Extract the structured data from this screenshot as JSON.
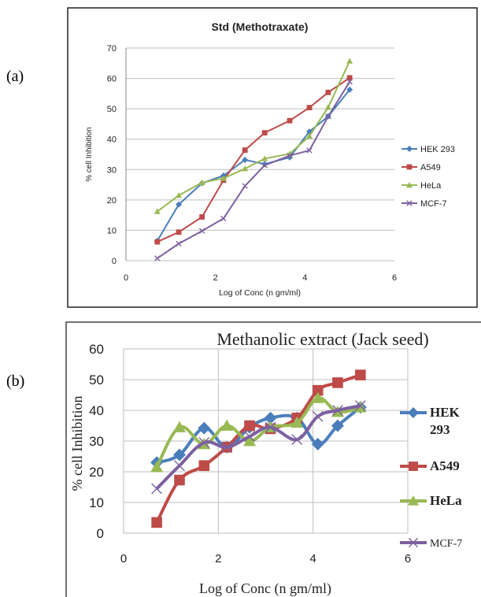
{
  "panel_labels": [
    "(a)",
    "(b)"
  ],
  "colors": {
    "HEK 293": "#4a7ebb",
    "A549": "#be4b48",
    "HeLa": "#98b954",
    "MCF-7": "#7d60a0"
  },
  "chart_data": [
    {
      "type": "line",
      "title": "Std (Methotraxate)",
      "xlabel": "Log of Conc (n gm/ml)",
      "ylabel": "% cell Inhibition",
      "xlim": [
        0,
        6
      ],
      "ylim": [
        0,
        70
      ],
      "xticks": [
        0,
        2,
        4,
        6
      ],
      "yticks": [
        0,
        10,
        20,
        30,
        40,
        50,
        60,
        70
      ],
      "legend_position": "right",
      "smooth": false,
      "series": [
        {
          "name": "HEK 293",
          "marker": "diamond",
          "x": [
            0.7,
            1.18,
            1.7,
            2.18,
            2.66,
            3.1,
            3.66,
            4.1,
            4.52,
            5.0
          ],
          "y": [
            6.5,
            18.5,
            25.5,
            28.0,
            33.2,
            31.8,
            34.0,
            42.5,
            47.5,
            56.3
          ]
        },
        {
          "name": "A549",
          "marker": "square",
          "x": [
            0.7,
            1.18,
            1.7,
            2.18,
            2.66,
            3.1,
            3.66,
            4.1,
            4.52,
            5.0
          ],
          "y": [
            6.2,
            9.4,
            14.4,
            26.5,
            36.4,
            42.1,
            46.1,
            50.4,
            55.4,
            60.2
          ]
        },
        {
          "name": "HeLa",
          "marker": "triangle",
          "x": [
            0.7,
            1.18,
            1.7,
            2.18,
            2.66,
            3.1,
            3.66,
            4.1,
            4.52,
            5.0
          ],
          "y": [
            16.2,
            21.5,
            25.7,
            27.1,
            30.3,
            33.6,
            35.2,
            41.0,
            50.5,
            65.7
          ]
        },
        {
          "name": "MCF-7",
          "marker": "x",
          "x": [
            0.7,
            1.18,
            1.7,
            2.18,
            2.66,
            3.1,
            3.66,
            4.1,
            4.52,
            5.0
          ],
          "y": [
            0.8,
            5.6,
            9.8,
            13.9,
            24.6,
            31.4,
            34.6,
            36.3,
            47.5,
            58.9
          ]
        }
      ]
    },
    {
      "type": "line",
      "title": "Methanolic extract (Jack seed)",
      "xlabel": "Log of Conc (n gm/ml)",
      "ylabel": "% cell Inhibition",
      "xlim": [
        0,
        6
      ],
      "ylim": [
        0,
        60
      ],
      "xticks": [
        0,
        2,
        4,
        6
      ],
      "yticks": [
        0,
        10,
        20,
        30,
        40,
        50,
        60
      ],
      "legend_position": "right",
      "smooth": true,
      "series": [
        {
          "name": "HEK 293",
          "name_lines": [
            "HEK",
            "293"
          ],
          "marker": "diamond",
          "x": [
            0.7,
            1.18,
            1.7,
            2.18,
            2.66,
            3.1,
            3.66,
            4.1,
            4.52,
            5.0
          ],
          "y": [
            23.0,
            25.5,
            34.2,
            28.0,
            34.5,
            37.5,
            37.5,
            29.0,
            35.0,
            41.0
          ]
        },
        {
          "name": "A549",
          "marker": "square",
          "x": [
            0.7,
            1.18,
            1.7,
            2.18,
            2.66,
            3.1,
            3.66,
            4.1,
            4.52,
            5.0
          ],
          "y": [
            3.5,
            17.3,
            22.0,
            28.0,
            35.0,
            34.0,
            37.5,
            46.5,
            49.0,
            51.5
          ]
        },
        {
          "name": "HeLa",
          "marker": "triangle",
          "x": [
            0.7,
            1.18,
            1.7,
            2.18,
            2.66,
            3.1,
            3.66,
            4.1,
            4.52,
            5.0
          ],
          "y": [
            21.5,
            34.5,
            29.0,
            35.0,
            30.0,
            34.5,
            36.0,
            44.0,
            39.5,
            41.0
          ]
        },
        {
          "name": "MCF-7",
          "marker": "x",
          "x": [
            0.7,
            1.18,
            1.7,
            2.18,
            2.66,
            3.1,
            3.66,
            4.1,
            4.52,
            5.0
          ],
          "y": [
            14.5,
            22.0,
            29.5,
            28.0,
            31.5,
            34.5,
            30.5,
            38.0,
            40.0,
            41.5
          ]
        }
      ]
    }
  ]
}
